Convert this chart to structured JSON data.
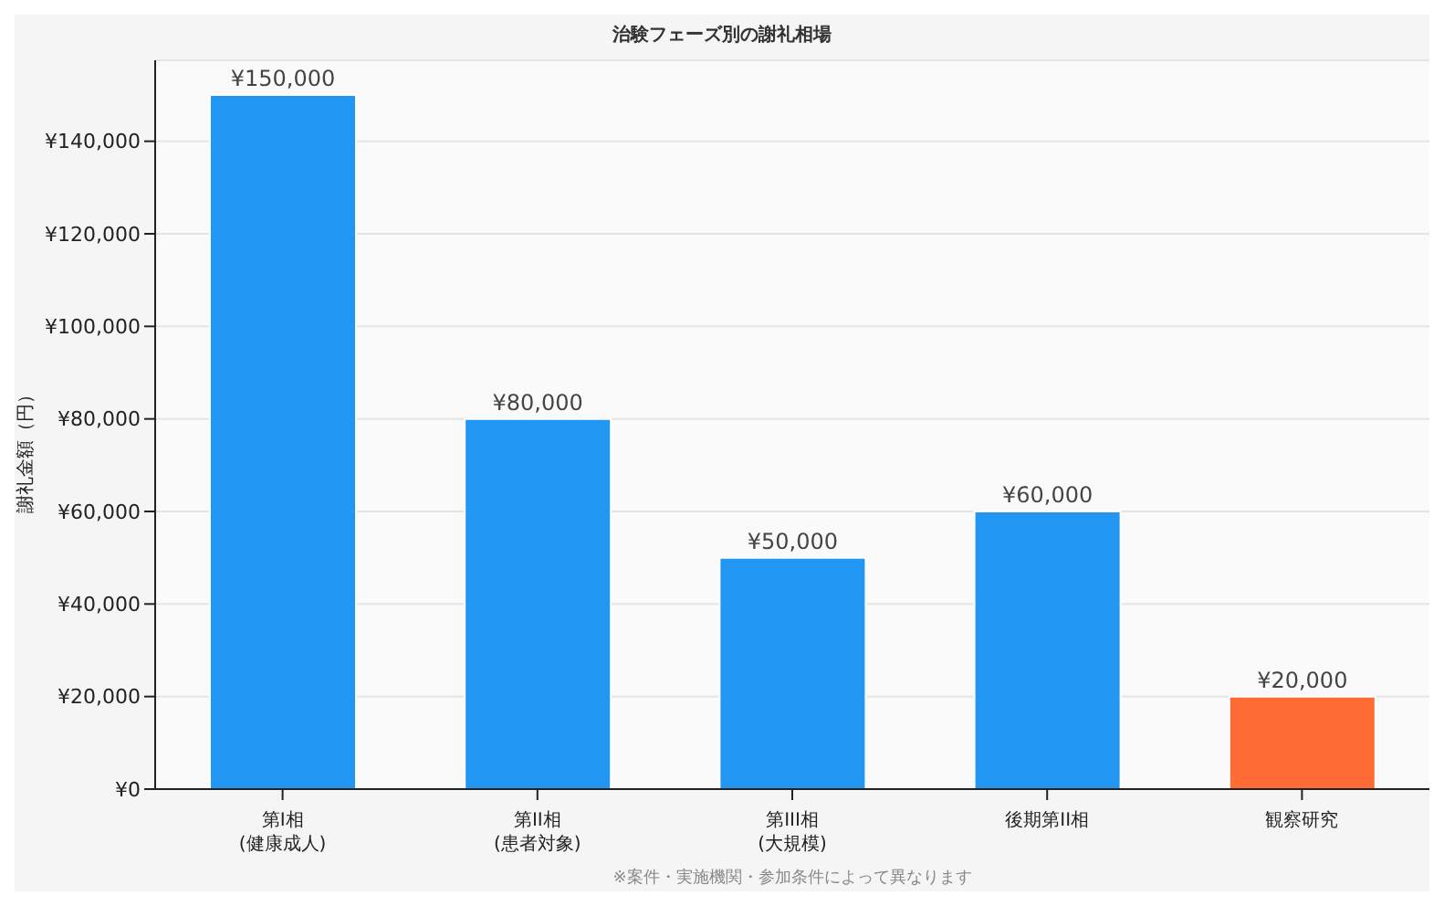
{
  "chart_data": {
    "type": "bar",
    "title": "治験フェーズ別の謝礼相場",
    "ylabel": "謝礼金額（円）",
    "categories": [
      "第I相\n(健康成人)",
      "第II相\n(患者対象)",
      "第III相\n(大規模)",
      "後期第II相",
      "観察研究"
    ],
    "values": [
      150000,
      80000,
      50000,
      60000,
      20000
    ],
    "colors": [
      "#2196f3",
      "#2196f3",
      "#2196f3",
      "#2196f3",
      "#ff6b35"
    ],
    "value_labels": [
      "¥150,000",
      "¥80,000",
      "¥50,000",
      "¥60,000",
      "¥20,000"
    ],
    "ylim": [
      0,
      157500
    ],
    "yticks": [
      {
        "value": 0,
        "label": "¥0"
      },
      {
        "value": 20000,
        "label": "¥20,000"
      },
      {
        "value": 40000,
        "label": "¥40,000"
      },
      {
        "value": 60000,
        "label": "¥60,000"
      },
      {
        "value": 80000,
        "label": "¥80,000"
      },
      {
        "value": 100000,
        "label": "¥100,000"
      },
      {
        "value": 120000,
        "label": "¥120,000"
      },
      {
        "value": 140000,
        "label": "¥140,000"
      }
    ],
    "grid": "y",
    "annotations": [
      "※案件・実施機関・参加条件によって異なります"
    ]
  }
}
